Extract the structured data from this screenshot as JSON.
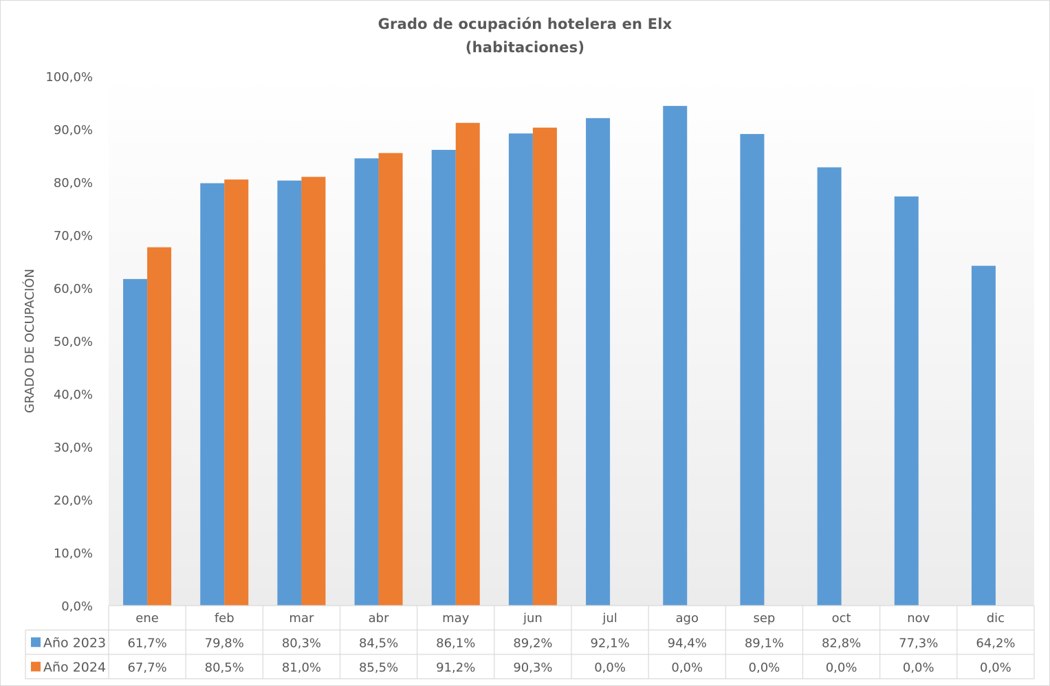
{
  "chart_data": {
    "type": "bar",
    "title": "Grado de ocupación hotelera en Elx",
    "subtitle": "(habitaciones)",
    "xlabel": "",
    "ylabel": "GRADO DE OCUPACIÓN",
    "ylim": [
      0,
      100
    ],
    "yticks": [
      "0,0%",
      "10,0%",
      "20,0%",
      "30,0%",
      "40,0%",
      "50,0%",
      "60,0%",
      "70,0%",
      "80,0%",
      "90,0%",
      "100,0%"
    ],
    "categories": [
      "ene",
      "feb",
      "mar",
      "abr",
      "may",
      "jun",
      "jul",
      "ago",
      "sep",
      "oct",
      "nov",
      "dic"
    ],
    "series": [
      {
        "name": "Año 2023",
        "color": "#5b9bd5",
        "values": [
          61.7,
          79.8,
          80.3,
          84.5,
          86.1,
          89.2,
          92.1,
          94.4,
          89.1,
          82.8,
          77.3,
          64.2
        ],
        "labels": [
          "61,7%",
          "79,8%",
          "80,3%",
          "84,5%",
          "86,1%",
          "89,2%",
          "92,1%",
          "94,4%",
          "89,1%",
          "82,8%",
          "77,3%",
          "64,2%"
        ]
      },
      {
        "name": "Año 2024",
        "color": "#ed7d31",
        "values": [
          67.7,
          80.5,
          81.0,
          85.5,
          91.2,
          90.3,
          0.0,
          0.0,
          0.0,
          0.0,
          0.0,
          0.0
        ],
        "labels": [
          "67,7%",
          "80,5%",
          "81,0%",
          "85,5%",
          "91,2%",
          "90,3%",
          "0,0%",
          "0,0%",
          "0,0%",
          "0,0%",
          "0,0%",
          "0,0%"
        ]
      }
    ],
    "grid": false,
    "legend": "data-table-left"
  }
}
